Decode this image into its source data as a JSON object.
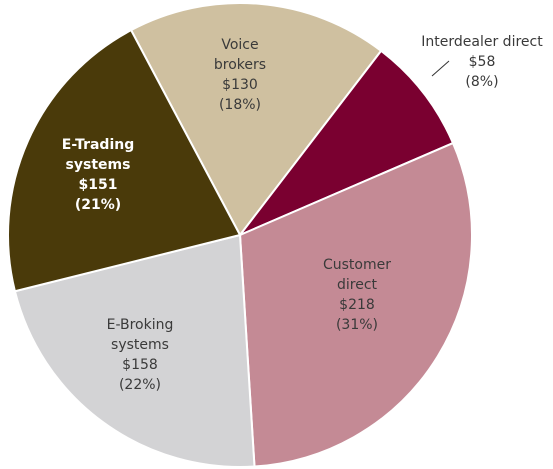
{
  "chart_data": {
    "type": "pie",
    "categories": [
      "Voice brokers",
      "Interdealer direct",
      "Customer direct",
      "E-Broking systems",
      "E-Trading systems"
    ],
    "values": [
      130,
      58,
      218,
      158,
      151
    ],
    "value_labels": [
      "$130",
      "$58",
      "$218",
      "$158",
      "$151"
    ],
    "percents": [
      18,
      8,
      31,
      22,
      21
    ],
    "percent_labels": [
      "(18%)",
      "(8%)",
      "(31%)",
      "(22%)",
      "(21%)"
    ],
    "colors": [
      "#cfc0a0",
      "#7a0030",
      "#c48a95",
      "#d3d3d5",
      "#4a3a0a"
    ]
  }
}
